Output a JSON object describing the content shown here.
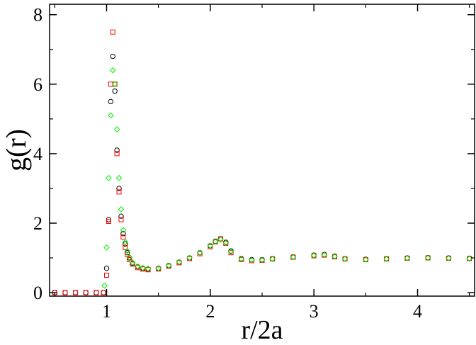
{
  "chart_data": {
    "type": "scatter",
    "xlabel": "r/2a",
    "ylabel": "g(r)",
    "xlim": [
      0.45,
      4.55
    ],
    "ylim": [
      -0.1,
      8.3
    ],
    "x_ticks": [
      1,
      2,
      3,
      4
    ],
    "x_tick_labels": [
      "1",
      "2",
      "3",
      "4"
    ],
    "y_ticks": [
      0,
      2,
      4,
      6,
      8
    ],
    "y_tick_labels": [
      "0",
      "2",
      "4",
      "6",
      "8"
    ],
    "grid": false,
    "legend": "none",
    "series": [
      {
        "marker": "circle",
        "color": "#000000",
        "x": [
          0.5,
          0.6,
          0.7,
          0.8,
          0.9,
          0.97,
          1.0,
          1.02,
          1.04,
          1.06,
          1.08,
          1.1,
          1.12,
          1.14,
          1.16,
          1.18,
          1.2,
          1.22,
          1.25,
          1.3,
          1.35,
          1.4,
          1.5,
          1.6,
          1.7,
          1.8,
          1.9,
          2.0,
          2.05,
          2.1,
          2.15,
          2.2,
          2.3,
          2.4,
          2.5,
          2.6,
          2.8,
          3.0,
          3.1,
          3.2,
          3.3,
          3.5,
          3.7,
          3.9,
          4.1,
          4.3,
          4.5
        ],
        "y": [
          0,
          0,
          0,
          0,
          0,
          0,
          0.7,
          2.1,
          5.5,
          6.8,
          5.8,
          4.1,
          3.0,
          2.2,
          1.7,
          1.4,
          1.15,
          1.0,
          0.85,
          0.75,
          0.7,
          0.68,
          0.7,
          0.78,
          0.88,
          1.0,
          1.15,
          1.35,
          1.48,
          1.55,
          1.45,
          1.2,
          0.98,
          0.95,
          0.95,
          0.98,
          1.03,
          1.08,
          1.1,
          1.05,
          0.98,
          0.96,
          0.98,
          1.0,
          1.01,
          1.0,
          0.99
        ]
      },
      {
        "marker": "square",
        "color": "#ff0000",
        "x": [
          0.5,
          0.6,
          0.7,
          0.8,
          0.9,
          0.97,
          1.0,
          1.02,
          1.04,
          1.06,
          1.08,
          1.1,
          1.12,
          1.14,
          1.16,
          1.18,
          1.2,
          1.22,
          1.25,
          1.3,
          1.35,
          1.4,
          1.5,
          1.6,
          1.7,
          1.8,
          1.9,
          2.0,
          2.05,
          2.1,
          2.15,
          2.2,
          2.3,
          2.4,
          2.5,
          2.6,
          2.8,
          3.0,
          3.1,
          3.2,
          3.3,
          3.5,
          3.7,
          3.9,
          4.1,
          4.3,
          4.5
        ],
        "y": [
          0,
          0,
          0,
          0,
          0,
          0,
          0.5,
          2.05,
          6.0,
          7.5,
          6.0,
          4.0,
          2.9,
          2.1,
          1.6,
          1.3,
          1.1,
          0.95,
          0.82,
          0.72,
          0.68,
          0.66,
          0.68,
          0.76,
          0.86,
          0.98,
          1.12,
          1.32,
          1.46,
          1.55,
          1.42,
          1.15,
          0.95,
          0.92,
          0.93,
          0.97,
          1.02,
          1.06,
          1.08,
          1.03,
          0.97,
          0.95,
          0.97,
          0.99,
          1.0,
          0.99,
          0.98
        ]
      },
      {
        "marker": "diamond",
        "color": "#00ee00",
        "x": [
          0.98,
          1.0,
          1.02,
          1.04,
          1.06,
          1.08,
          1.1,
          1.12,
          1.14,
          1.16,
          1.18,
          1.2,
          1.22,
          1.25,
          1.3,
          1.35,
          1.4,
          1.5,
          1.6,
          1.7,
          1.8,
          1.9,
          2.0,
          2.05,
          2.1,
          2.15,
          2.2,
          2.3,
          2.4,
          2.5,
          2.6,
          2.8,
          3.0,
          3.1,
          3.2,
          3.3,
          3.5,
          3.7,
          3.9,
          4.1,
          4.3,
          4.5
        ],
        "y": [
          0.2,
          1.3,
          3.3,
          5.1,
          6.4,
          6.0,
          4.7,
          3.3,
          2.4,
          1.8,
          1.45,
          1.2,
          1.02,
          0.87,
          0.76,
          0.71,
          0.69,
          0.7,
          0.78,
          0.88,
          1.0,
          1.15,
          1.35,
          1.47,
          1.53,
          1.43,
          1.18,
          0.97,
          0.94,
          0.94,
          0.97,
          1.02,
          1.07,
          1.09,
          1.04,
          0.97,
          0.95,
          0.97,
          0.99,
          1.0,
          0.99,
          0.98
        ]
      }
    ]
  }
}
